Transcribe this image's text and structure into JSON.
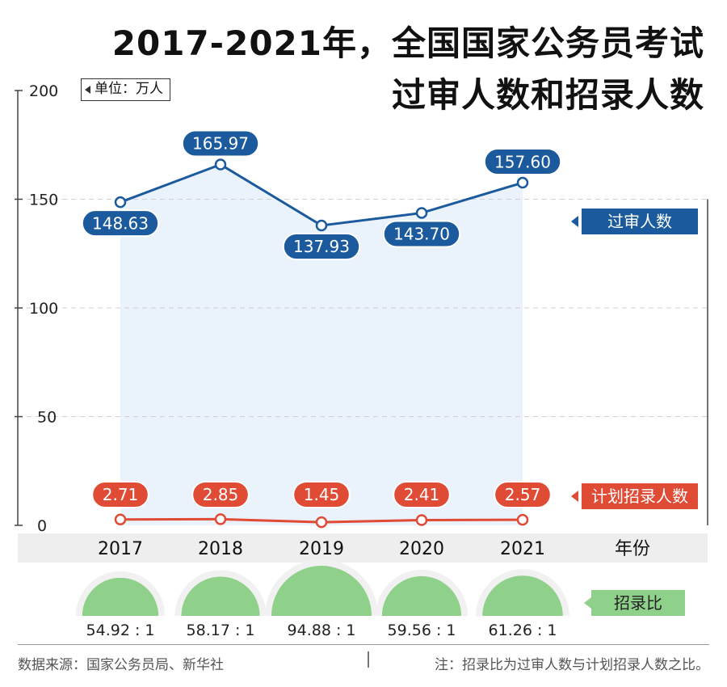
{
  "title": {
    "line1": "2017-2021年，全国国家公务员考试",
    "line2": "过审人数和招录人数"
  },
  "unit_label": "单位：万人",
  "footer": {
    "source": "数据来源：国家公务员局、新华社",
    "note": "注：招录比为过审人数与计划招录人数之比。"
  },
  "colors": {
    "blue": "#1c5a9e",
    "red": "#e04b36",
    "green": "#8fd08a",
    "area": "#eaf2fb",
    "axis_band": "#eeeeee"
  },
  "chart_data": {
    "type": "line",
    "categories": [
      "2017",
      "2018",
      "2019",
      "2020",
      "2021"
    ],
    "xlabel": "年份",
    "ylim": [
      0,
      200
    ],
    "yticks": [
      0,
      50,
      100,
      150,
      200
    ],
    "grid": true,
    "series": [
      {
        "name": "过审人数",
        "values": [
          148.63,
          165.97,
          137.93,
          143.7,
          157.6
        ],
        "labels": [
          "148.63",
          "165.97",
          "137.93",
          "143.70",
          "157.60"
        ]
      },
      {
        "name": "计划招录人数",
        "values": [
          2.71,
          2.85,
          1.45,
          2.41,
          2.57
        ],
        "labels": [
          "2.71",
          "2.85",
          "1.45",
          "2.41",
          "2.57"
        ]
      }
    ],
    "ratio": {
      "name": "招录比",
      "values": [
        54.92,
        58.17,
        94.88,
        59.56,
        61.26
      ],
      "labels": [
        "54.92 : 1",
        "58.17 : 1",
        "94.88 : 1",
        "59.56 : 1",
        "61.26 : 1"
      ]
    }
  }
}
